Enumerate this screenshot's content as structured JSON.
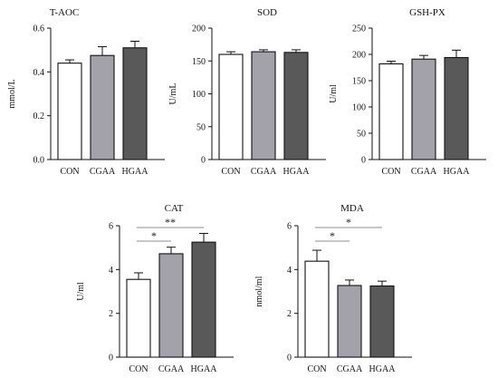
{
  "colors": {
    "CON": "#ffffff",
    "CGAA": "#a3a1a9",
    "HGAA": "#595959",
    "stroke": "#111111",
    "sig_line": "#8f8f8f"
  },
  "chart_data": [
    {
      "type": "bar",
      "title": "T-AOC",
      "ylabel": "mmol/L",
      "categories": [
        "CON",
        "CGAA",
        "HGAA"
      ],
      "values": [
        0.44,
        0.475,
        0.51
      ],
      "errors": [
        0.015,
        0.04,
        0.03
      ],
      "ylim": [
        0,
        0.6
      ],
      "yticks": [
        "0.0",
        "0.2",
        "0.4",
        "0.6"
      ],
      "significance": []
    },
    {
      "type": "bar",
      "title": "SOD",
      "ylabel": "U/mL",
      "categories": [
        "CON",
        "CGAA",
        "HGAA"
      ],
      "values": [
        160,
        164,
        163
      ],
      "errors": [
        4,
        3,
        4
      ],
      "ylim": [
        0,
        200
      ],
      "yticks": [
        "0",
        "50",
        "100",
        "150",
        "200"
      ],
      "significance": []
    },
    {
      "type": "bar",
      "title": "GSH-PX",
      "ylabel": "U/ml",
      "categories": [
        "CON",
        "CGAA",
        "HGAA"
      ],
      "values": [
        182,
        191,
        194
      ],
      "errors": [
        5,
        7,
        14
      ],
      "ylim": [
        0,
        250
      ],
      "yticks": [
        "0",
        "50",
        "100",
        "150",
        "200",
        "250"
      ],
      "significance": []
    },
    {
      "type": "bar",
      "title": "CAT",
      "ylabel": "U/ml",
      "categories": [
        "CON",
        "CGAA",
        "HGAA"
      ],
      "values": [
        3.55,
        4.72,
        5.25
      ],
      "errors": [
        0.3,
        0.3,
        0.4
      ],
      "ylim": [
        0,
        6
      ],
      "yticks": [
        "0",
        "2",
        "4",
        "6"
      ],
      "significance": [
        {
          "from": 0,
          "to": 2,
          "label": "**"
        },
        {
          "from": 0,
          "to": 1,
          "label": "*"
        }
      ]
    },
    {
      "type": "bar",
      "title": "MDA",
      "ylabel": "nmol/ml",
      "categories": [
        "CON",
        "CGAA",
        "HGAA"
      ],
      "values": [
        4.38,
        3.27,
        3.25
      ],
      "errors": [
        0.5,
        0.25,
        0.22
      ],
      "ylim": [
        0,
        6
      ],
      "yticks": [
        "0",
        "2",
        "4",
        "6"
      ],
      "significance": [
        {
          "from": 0,
          "to": 2,
          "label": "*"
        },
        {
          "from": 0,
          "to": 1,
          "label": "*"
        }
      ]
    }
  ]
}
